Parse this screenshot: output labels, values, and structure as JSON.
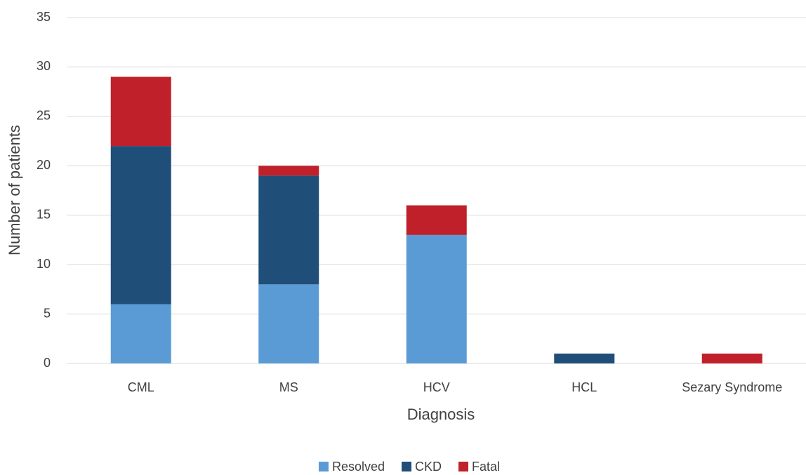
{
  "chart_data": {
    "type": "stacked_bar",
    "x_label": "Diagnosis",
    "y_label": "Number of patients",
    "categories": [
      "CML",
      "MS",
      "HCV",
      "HCL",
      "Sezary Syndrome"
    ],
    "series": [
      {
        "name": "Resolved",
        "color": "#5b9bd5",
        "values": [
          6,
          8,
          13,
          0,
          0
        ]
      },
      {
        "name": "CKD",
        "color": "#1f4e79",
        "values": [
          16,
          11,
          0,
          1,
          0
        ]
      },
      {
        "name": "Fatal",
        "color": "#c0202a",
        "values": [
          7,
          1,
          3,
          0,
          1
        ]
      }
    ],
    "ylim": [
      0,
      35
    ],
    "yticks": [
      0,
      5,
      10,
      15,
      20,
      25,
      30,
      35
    ],
    "grid": true,
    "legend": "bottom"
  }
}
